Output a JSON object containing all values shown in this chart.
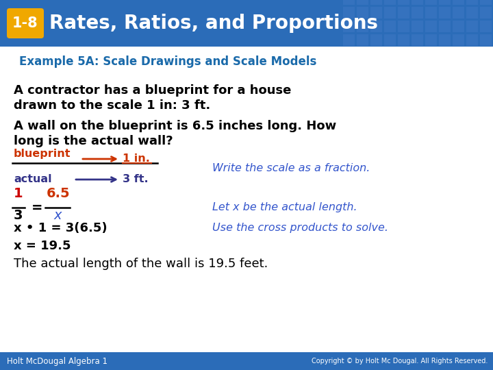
{
  "header_bg_color": "#2b6cb8",
  "header_text": "Rates, Ratios, and Proportions",
  "header_text_color": "#ffffff",
  "badge_bg_color": "#f0a800",
  "badge_text": "1-8",
  "badge_text_color": "#ffffff",
  "subheader_text": "Example 5A: Scale Drawings and Scale Models",
  "subheader_color": "#1a6aaa",
  "body_bg_color": "#ffffff",
  "para1_line1": "A contractor has a blueprint for a house",
  "para1_line2": "drawn to the scale 1 in: 3 ft.",
  "para2_line1": "A wall on the blueprint is 6.5 inches long. How",
  "para2_line2": "long is the actual wall?",
  "blueprint_label": "blueprint",
  "blueprint_label_color": "#cc3300",
  "blueprint_arrow_label": "1 in.",
  "blueprint_arrow_color": "#cc3300",
  "actual_label": "actual",
  "actual_label_color": "#333388",
  "actual_arrow_label": "3 ft.",
  "actual_arrow_color": "#333388",
  "fraction_1_num": "1",
  "fraction_1_den": "3",
  "fraction_2_num": "6.5",
  "fraction_2_den": "x",
  "fraction_red_color": "#cc0000",
  "fraction_blue_color": "#3355cc",
  "equals_sign": "=",
  "step1_right": "Write the scale as a fraction.",
  "step2_right": "Let x be the actual length.",
  "step3_right": "Use the cross products to solve.",
  "cross_products_line": "x • 1 = 3(6.5)",
  "solution_line": "x = 19.5",
  "conclusion_line": "The actual length of the wall is 19.5 feet.",
  "footer_left": "Holt McDougal Algebra 1",
  "footer_right": "Copyright © by Holt Mc Dougal. All Rights Reserved.",
  "footer_bg": "#2b6cb8",
  "footer_text_color": "#ffffff",
  "body_text_color": "#000000",
  "italic_color": "#3355cc",
  "grid_color": "#4a80cc"
}
